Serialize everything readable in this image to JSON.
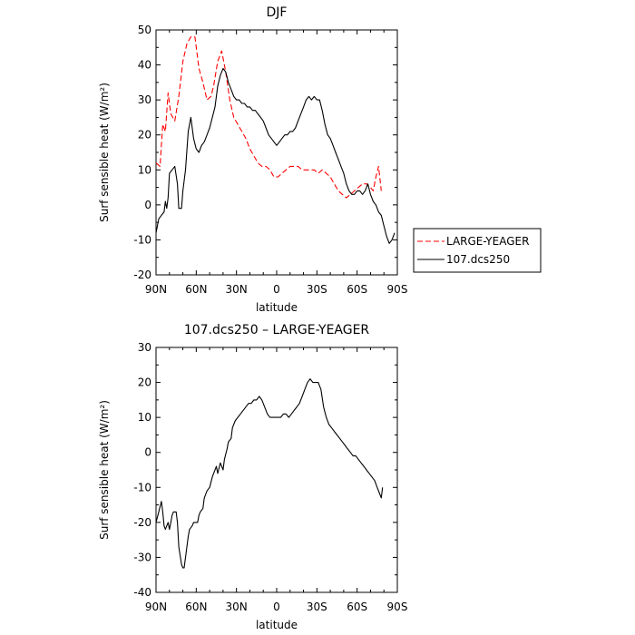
{
  "chart_data": [
    {
      "type": "line",
      "title": "DJF",
      "xlabel": "latitude",
      "ylabel": "Surf sensible heat (W/m²)",
      "xlim": [
        90,
        -90
      ],
      "ylim": [
        -20,
        50
      ],
      "xticks": [
        90,
        60,
        30,
        0,
        -30,
        -60,
        -90
      ],
      "xtick_labels": [
        "90N",
        "60N",
        "30N",
        "0",
        "30S",
        "60S",
        "90S"
      ],
      "yticks": [
        -20,
        -10,
        0,
        10,
        20,
        30,
        40,
        50
      ],
      "ytick_labels": [
        "-20",
        "-10",
        "0",
        "10",
        "20",
        "30",
        "40",
        "50"
      ],
      "legend": "right",
      "series": [
        {
          "name": "LARGE-YEAGER",
          "color": "#ff0000",
          "dash": "dashed",
          "points": [
            [
              90,
              12
            ],
            [
              87,
              11
            ],
            [
              85,
              23
            ],
            [
              83,
              21
            ],
            [
              81,
              32
            ],
            [
              79,
              26
            ],
            [
              76,
              24
            ],
            [
              73,
              31
            ],
            [
              70,
              41
            ],
            [
              67,
              46
            ],
            [
              64,
              48
            ],
            [
              61,
              48
            ],
            [
              58,
              39
            ],
            [
              55,
              35
            ],
            [
              52,
              30
            ],
            [
              49,
              31
            ],
            [
              47,
              34
            ],
            [
              44,
              41
            ],
            [
              41,
              44
            ],
            [
              38,
              38
            ],
            [
              35,
              30
            ],
            [
              32,
              25
            ],
            [
              29,
              23
            ],
            [
              26,
              21
            ],
            [
              23,
              19
            ],
            [
              20,
              16
            ],
            [
              17,
              14
            ],
            [
              14,
              12
            ],
            [
              11,
              11
            ],
            [
              8,
              11
            ],
            [
              5,
              10
            ],
            [
              2,
              8
            ],
            [
              -1,
              8
            ],
            [
              -4,
              9
            ],
            [
              -7,
              10
            ],
            [
              -10,
              11
            ],
            [
              -13,
              11
            ],
            [
              -16,
              11
            ],
            [
              -19,
              10
            ],
            [
              -22,
              10
            ],
            [
              -25,
              10
            ],
            [
              -28,
              10
            ],
            [
              -31,
              9
            ],
            [
              -34,
              10
            ],
            [
              -37,
              9
            ],
            [
              -40,
              8
            ],
            [
              -43,
              6
            ],
            [
              -46,
              4
            ],
            [
              -49,
              3
            ],
            [
              -52,
              2
            ],
            [
              -55,
              3
            ],
            [
              -58,
              4
            ],
            [
              -61,
              5
            ],
            [
              -64,
              6
            ],
            [
              -67,
              6
            ],
            [
              -70,
              5
            ],
            [
              -72,
              4
            ],
            [
              -74,
              8
            ],
            [
              -76,
              11
            ],
            [
              -78,
              4
            ]
          ]
        },
        {
          "name": "107.dcs250",
          "color": "#000000",
          "dash": "solid",
          "points": [
            [
              90,
              -8
            ],
            [
              88,
              -4
            ],
            [
              86,
              -3
            ],
            [
              84,
              -2
            ],
            [
              83,
              1
            ],
            [
              82,
              -1
            ],
            [
              81,
              2
            ],
            [
              80,
              9
            ],
            [
              78,
              10
            ],
            [
              76,
              11
            ],
            [
              74,
              6
            ],
            [
              73,
              -1
            ],
            [
              71,
              -1
            ],
            [
              70,
              4
            ],
            [
              68,
              10
            ],
            [
              66,
              21
            ],
            [
              64,
              25
            ],
            [
              62,
              19
            ],
            [
              60,
              16
            ],
            [
              58,
              15
            ],
            [
              56,
              17
            ],
            [
              54,
              18
            ],
            [
              52,
              20
            ],
            [
              50,
              22
            ],
            [
              48,
              25
            ],
            [
              46,
              28
            ],
            [
              44,
              34
            ],
            [
              42,
              37
            ],
            [
              40,
              39
            ],
            [
              38,
              38
            ],
            [
              36,
              35
            ],
            [
              34,
              33
            ],
            [
              32,
              31
            ],
            [
              30,
              30
            ],
            [
              28,
              30
            ],
            [
              26,
              29
            ],
            [
              24,
              29
            ],
            [
              22,
              28
            ],
            [
              20,
              28
            ],
            [
              18,
              27
            ],
            [
              16,
              27
            ],
            [
              14,
              26
            ],
            [
              12,
              25
            ],
            [
              10,
              24
            ],
            [
              8,
              22
            ],
            [
              6,
              20
            ],
            [
              4,
              19
            ],
            [
              2,
              18
            ],
            [
              0,
              17
            ],
            [
              -2,
              18
            ],
            [
              -4,
              19
            ],
            [
              -6,
              20
            ],
            [
              -8,
              20
            ],
            [
              -10,
              21
            ],
            [
              -12,
              21
            ],
            [
              -14,
              22
            ],
            [
              -16,
              24
            ],
            [
              -18,
              26
            ],
            [
              -20,
              28
            ],
            [
              -22,
              30
            ],
            [
              -24,
              31
            ],
            [
              -26,
              30
            ],
            [
              -28,
              31
            ],
            [
              -30,
              30
            ],
            [
              -32,
              30
            ],
            [
              -34,
              27
            ],
            [
              -36,
              23
            ],
            [
              -38,
              20
            ],
            [
              -40,
              19
            ],
            [
              -42,
              17
            ],
            [
              -44,
              15
            ],
            [
              -46,
              13
            ],
            [
              -48,
              11
            ],
            [
              -50,
              9
            ],
            [
              -52,
              6
            ],
            [
              -54,
              4
            ],
            [
              -56,
              3
            ],
            [
              -58,
              3
            ],
            [
              -60,
              4
            ],
            [
              -62,
              4
            ],
            [
              -64,
              3
            ],
            [
              -66,
              4
            ],
            [
              -68,
              6
            ],
            [
              -70,
              3
            ],
            [
              -72,
              1
            ],
            [
              -74,
              0
            ],
            [
              -76,
              -2
            ],
            [
              -78,
              -3
            ],
            [
              -80,
              -6
            ],
            [
              -82,
              -9
            ],
            [
              -84,
              -11
            ],
            [
              -86,
              -10
            ],
            [
              -88,
              -8
            ]
          ]
        }
      ]
    },
    {
      "type": "line",
      "title": "107.dcs250 – LARGE-YEAGER",
      "xlabel": "latitude",
      "ylabel": "Surf sensible heat (W/m²)",
      "xlim": [
        90,
        -90
      ],
      "ylim": [
        -40,
        30
      ],
      "xticks": [
        90,
        60,
        30,
        0,
        -30,
        -60,
        -90
      ],
      "xtick_labels": [
        "90N",
        "60N",
        "30N",
        "0",
        "30S",
        "60S",
        "90S"
      ],
      "yticks": [
        -40,
        -30,
        -20,
        -10,
        0,
        10,
        20,
        30
      ],
      "ytick_labels": [
        "-40",
        "-30",
        "-20",
        "-10",
        "0",
        "10",
        "20",
        "30"
      ],
      "series": [
        {
          "color": "#000000",
          "dash": "solid",
          "points": [
            [
              90,
              -20
            ],
            [
              88,
              -17
            ],
            [
              86,
              -14
            ],
            [
              85,
              -17
            ],
            [
              84,
              -21
            ],
            [
              83,
              -22
            ],
            [
              82,
              -21
            ],
            [
              81,
              -20
            ],
            [
              80,
              -22
            ],
            [
              79,
              -20
            ],
            [
              78,
              -18
            ],
            [
              77,
              -17
            ],
            [
              75,
              -17
            ],
            [
              74,
              -20
            ],
            [
              73,
              -27
            ],
            [
              71,
              -32
            ],
            [
              70,
              -33
            ],
            [
              69,
              -33
            ],
            [
              67,
              -27
            ],
            [
              66,
              -24
            ],
            [
              65,
              -22
            ],
            [
              63,
              -21
            ],
            [
              62,
              -20
            ],
            [
              60,
              -20
            ],
            [
              59,
              -20
            ],
            [
              58,
              -18
            ],
            [
              57,
              -17
            ],
            [
              55,
              -16
            ],
            [
              54,
              -13
            ],
            [
              52,
              -11
            ],
            [
              50,
              -10
            ],
            [
              48,
              -7
            ],
            [
              47,
              -6
            ],
            [
              45,
              -4
            ],
            [
              44,
              -6
            ],
            [
              42,
              -3
            ],
            [
              40,
              -5
            ],
            [
              39,
              -2
            ],
            [
              37,
              1
            ],
            [
              36,
              3
            ],
            [
              34,
              4
            ],
            [
              33,
              7
            ],
            [
              31,
              9
            ],
            [
              29,
              10
            ],
            [
              27,
              11
            ],
            [
              25,
              12
            ],
            [
              23,
              13
            ],
            [
              21,
              14
            ],
            [
              19,
              14
            ],
            [
              17,
              15
            ],
            [
              15,
              15
            ],
            [
              13,
              16
            ],
            [
              11,
              15
            ],
            [
              9,
              13
            ],
            [
              7,
              11
            ],
            [
              5,
              10
            ],
            [
              3,
              10
            ],
            [
              1,
              10
            ],
            [
              -1,
              10
            ],
            [
              -3,
              10
            ],
            [
              -5,
              11
            ],
            [
              -7,
              11
            ],
            [
              -9,
              10
            ],
            [
              -11,
              11
            ],
            [
              -13,
              12
            ],
            [
              -15,
              13
            ],
            [
              -17,
              14
            ],
            [
              -19,
              16
            ],
            [
              -21,
              18
            ],
            [
              -23,
              20
            ],
            [
              -25,
              21
            ],
            [
              -27,
              20
            ],
            [
              -29,
              20
            ],
            [
              -31,
              20
            ],
            [
              -33,
              18
            ],
            [
              -35,
              13
            ],
            [
              -37,
              10
            ],
            [
              -39,
              8
            ],
            [
              -41,
              7
            ],
            [
              -43,
              6
            ],
            [
              -45,
              5
            ],
            [
              -47,
              4
            ],
            [
              -49,
              3
            ],
            [
              -51,
              2
            ],
            [
              -53,
              1
            ],
            [
              -55,
              0
            ],
            [
              -57,
              -1
            ],
            [
              -59,
              -1
            ],
            [
              -61,
              -2
            ],
            [
              -63,
              -3
            ],
            [
              -65,
              -4
            ],
            [
              -67,
              -5
            ],
            [
              -69,
              -6
            ],
            [
              -71,
              -7
            ],
            [
              -73,
              -8
            ],
            [
              -75,
              -10
            ],
            [
              -77,
              -12
            ],
            [
              -78,
              -13
            ],
            [
              -79,
              -10
            ]
          ]
        }
      ]
    }
  ]
}
